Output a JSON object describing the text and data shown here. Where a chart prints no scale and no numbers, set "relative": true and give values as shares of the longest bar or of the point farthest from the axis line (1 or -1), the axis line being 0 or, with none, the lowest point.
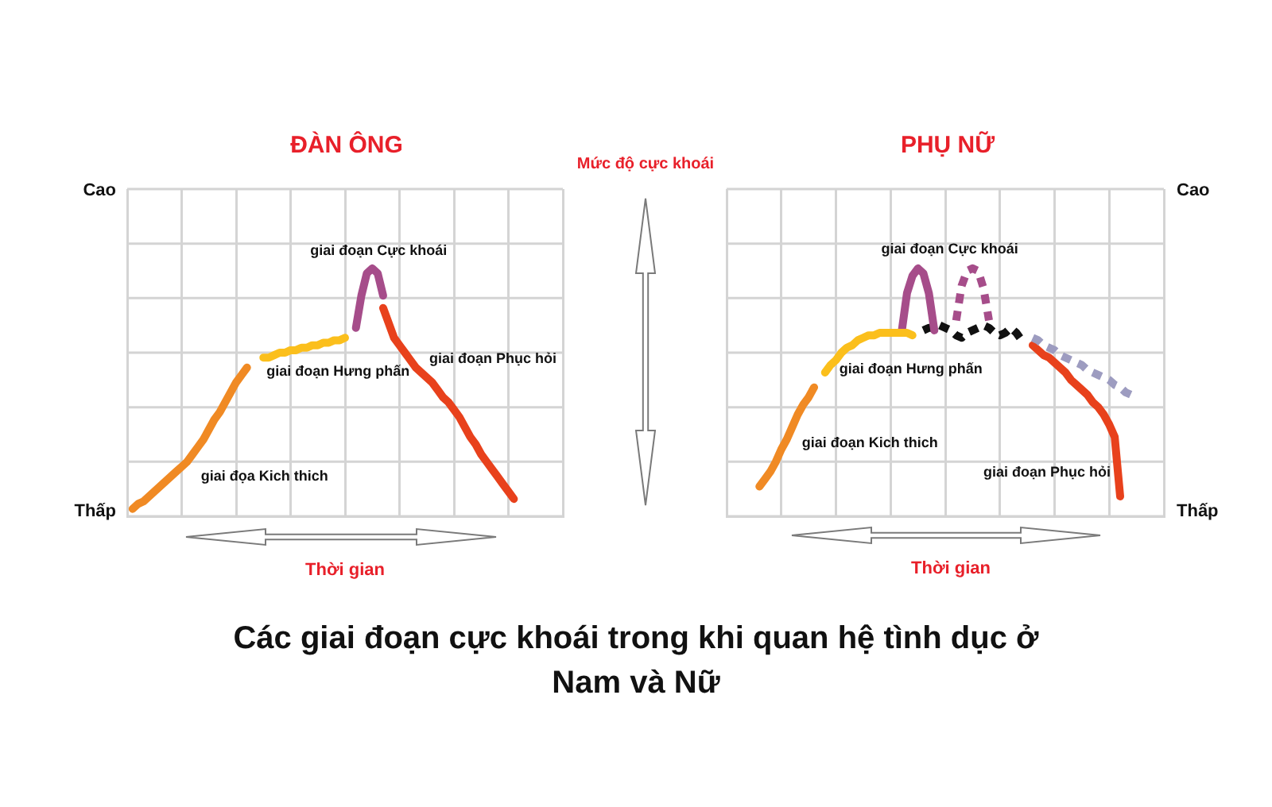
{
  "chart_data": [
    {
      "type": "line",
      "title": "ĐÀN ÔNG",
      "xlabel": "Thời gian",
      "ylabel": "Mức độ cực khoái",
      "relative": true,
      "categories": [
        null,
        null,
        null,
        null,
        null,
        null,
        null,
        null,
        null,
        null,
        null,
        null,
        null,
        null,
        null,
        null,
        null,
        null,
        null,
        null,
        null,
        null,
        null,
        null,
        null,
        null,
        null,
        null,
        null,
        null,
        null,
        null,
        null,
        null,
        null,
        null,
        null,
        null,
        null,
        null,
        null,
        null,
        null,
        null,
        null,
        null,
        null,
        null,
        null,
        null,
        null,
        null,
        null,
        null,
        null,
        null,
        null,
        null,
        null,
        null,
        null,
        null,
        null,
        null,
        null,
        null,
        null,
        null,
        null,
        null,
        null,
        null,
        null,
        null,
        null,
        null,
        null,
        null,
        null,
        null,
        null
      ],
      "grid": true,
      "legend": false,
      "marker": "none",
      "line_style": "solid",
      "annotations": [
        "Cao",
        "Thấp"
      ],
      "series": [
        {
          "name": "giai đọa Kich thich",
          "color": "#f08a24",
          "values": [
            null,
            0.03,
            0.05,
            0.06,
            0.08,
            0.1,
            0.12,
            0.14,
            0.16,
            0.18,
            0.2,
            0.22,
            0.25,
            0.28,
            0.31,
            0.35,
            0.39,
            0.42,
            0.46,
            0.5,
            0.54,
            0.57,
            0.6,
            null,
            null,
            null,
            null,
            null,
            null,
            null,
            null,
            null,
            null,
            null,
            null,
            null,
            null,
            null,
            null,
            null,
            null,
            null,
            null,
            null,
            null,
            null,
            null,
            null,
            null,
            null,
            null,
            null,
            null,
            null,
            null,
            null,
            null,
            null,
            null,
            null,
            null,
            null,
            null,
            null,
            null,
            null,
            null,
            null,
            null,
            null,
            null,
            null,
            null,
            null,
            null,
            null,
            null,
            null,
            null,
            null,
            null
          ]
        },
        {
          "name": "giai đoạn Hưng phấn",
          "color": "#fbbf1c",
          "values": [
            null,
            null,
            null,
            null,
            null,
            null,
            null,
            null,
            null,
            null,
            null,
            null,
            null,
            null,
            null,
            null,
            null,
            null,
            null,
            null,
            null,
            null,
            null,
            null,
            null,
            0.64,
            0.64,
            0.65,
            0.66,
            0.66,
            0.67,
            0.67,
            0.68,
            0.68,
            0.69,
            0.69,
            0.7,
            0.7,
            0.71,
            0.71,
            0.72,
            null,
            null,
            null,
            null,
            null,
            null,
            null,
            null,
            null,
            null,
            null,
            null,
            null,
            null,
            null,
            null,
            null,
            null,
            null,
            null,
            null,
            null,
            null,
            null,
            null,
            null,
            null,
            null,
            null,
            null,
            null,
            null,
            null,
            null,
            null,
            null,
            null,
            null,
            null,
            null
          ]
        },
        {
          "name": "giai đoạn Cực khoái",
          "color": "#a64d8a",
          "values": [
            null,
            null,
            null,
            null,
            null,
            null,
            null,
            null,
            null,
            null,
            null,
            null,
            null,
            null,
            null,
            null,
            null,
            null,
            null,
            null,
            null,
            null,
            null,
            null,
            null,
            null,
            null,
            null,
            null,
            null,
            null,
            null,
            null,
            null,
            null,
            null,
            null,
            null,
            null,
            null,
            null,
            null,
            0.76,
            0.89,
            0.98,
            1,
            0.98,
            0.89,
            null,
            null,
            null,
            null,
            null,
            null,
            null,
            null,
            null,
            null,
            null,
            null,
            null,
            null,
            null,
            null,
            null,
            null,
            null,
            null,
            null,
            null,
            null,
            null,
            null,
            null,
            null,
            null,
            null,
            null,
            null,
            null,
            null
          ]
        },
        {
          "name": "giai đoạn Phục hỏi",
          "color": "#e8411c",
          "values": [
            null,
            null,
            null,
            null,
            null,
            null,
            null,
            null,
            null,
            null,
            null,
            null,
            null,
            null,
            null,
            null,
            null,
            null,
            null,
            null,
            null,
            null,
            null,
            null,
            null,
            null,
            null,
            null,
            null,
            null,
            null,
            null,
            null,
            null,
            null,
            null,
            null,
            null,
            null,
            null,
            null,
            null,
            null,
            null,
            null,
            null,
            null,
            0.84,
            0.78,
            0.72,
            0.69,
            0.66,
            0.63,
            0.6,
            0.58,
            0.56,
            0.54,
            0.51,
            0.48,
            0.46,
            0.43,
            0.4,
            0.36,
            0.32,
            0.29,
            0.25,
            0.22,
            0.19,
            0.16,
            0.13,
            0.1,
            0.07,
            null,
            null,
            null,
            null,
            null,
            null,
            null,
            null,
            null
          ]
        }
      ]
    },
    {
      "type": "line",
      "title": "PHỤ NỮ",
      "xlabel": "Thời gian",
      "relative": true,
      "categories": [
        null,
        null,
        null,
        null,
        null,
        null,
        null,
        null,
        null,
        null,
        null,
        null,
        null,
        null,
        null,
        null,
        null,
        null,
        null,
        null,
        null,
        null,
        null,
        null,
        null,
        null,
        null,
        null,
        null,
        null,
        null,
        null,
        null,
        null,
        null,
        null,
        null,
        null,
        null,
        null,
        null,
        null,
        null,
        null,
        null,
        null,
        null,
        null,
        null,
        null,
        null,
        null,
        null,
        null,
        null,
        null,
        null,
        null,
        null,
        null,
        null,
        null,
        null,
        null,
        null,
        null,
        null,
        null,
        null,
        null,
        null,
        null,
        null,
        null,
        null,
        null,
        null,
        null,
        null,
        null,
        null
      ],
      "grid": true,
      "legend": false,
      "marker": "none",
      "line_style": "solid",
      "annotations": [
        "Cao",
        "Thấp",
        "Các giai đoạn cực khoái trong khi quan hệ tình dục ở Nam và Nữ"
      ],
      "series": [
        {
          "name": "giai đoạn Kich thich",
          "color": "#f08a24",
          "values": [
            null,
            null,
            null,
            null,
            null,
            null,
            0.12,
            0.15,
            0.18,
            0.22,
            0.27,
            0.31,
            0.36,
            0.41,
            0.45,
            0.48,
            0.52,
            null,
            null,
            null,
            null,
            null,
            null,
            null,
            null,
            null,
            null,
            null,
            null,
            null,
            null,
            null,
            null,
            null,
            null,
            null,
            null,
            null,
            null,
            null,
            null,
            null,
            null,
            null,
            null,
            null,
            null,
            null,
            null,
            null,
            null,
            null,
            null,
            null,
            null,
            null,
            null,
            null,
            null,
            null,
            null,
            null,
            null,
            null,
            null,
            null,
            null,
            null,
            null,
            null,
            null,
            null,
            null,
            null,
            null,
            null,
            null,
            null,
            null,
            null,
            null
          ]
        },
        {
          "name": "giai đoạn Hưng phấn",
          "color": "#fbbf1c",
          "values": [
            null,
            null,
            null,
            null,
            null,
            null,
            null,
            null,
            null,
            null,
            null,
            null,
            null,
            null,
            null,
            null,
            null,
            null,
            0.58,
            0.61,
            0.63,
            0.66,
            0.68,
            0.69,
            0.71,
            0.72,
            0.73,
            0.73,
            0.74,
            0.74,
            0.74,
            0.74,
            0.74,
            0.74,
            0.73,
            null,
            null,
            null,
            null,
            null,
            null,
            null,
            null,
            null,
            null,
            null,
            null,
            null,
            null,
            null,
            null,
            null,
            null,
            null,
            null,
            null,
            null,
            null,
            null,
            null,
            null,
            null,
            null,
            null,
            null,
            null,
            null,
            null,
            null,
            null,
            null,
            null,
            null,
            null,
            null,
            null,
            null,
            null,
            null,
            null,
            null
          ]
        },
        {
          "name": "giai đoạn Cực khoái",
          "color": "#a64d8a",
          "values": [
            null,
            null,
            null,
            null,
            null,
            null,
            null,
            null,
            null,
            null,
            null,
            null,
            null,
            null,
            null,
            null,
            null,
            null,
            null,
            null,
            null,
            null,
            null,
            null,
            null,
            null,
            null,
            null,
            null,
            null,
            null,
            null,
            0.74,
            0.9,
            0.97,
            1,
            0.98,
            0.9,
            0.75,
            null,
            null,
            null,
            null,
            null,
            null,
            null,
            null,
            null,
            null,
            null,
            null,
            null,
            null,
            null,
            null,
            null,
            null,
            null,
            null,
            null,
            null,
            null,
            null,
            null,
            null,
            null,
            null,
            null,
            null,
            null,
            null,
            null,
            null,
            null,
            null,
            null,
            null,
            null,
            null,
            null,
            null
          ]
        },
        {
          "color": "#a64d8a",
          "line_style": "dotted",
          "values": [
            null,
            null,
            null,
            null,
            null,
            null,
            null,
            null,
            null,
            null,
            null,
            null,
            null,
            null,
            null,
            null,
            null,
            null,
            null,
            null,
            null,
            null,
            null,
            null,
            null,
            null,
            null,
            null,
            null,
            null,
            null,
            null,
            null,
            null,
            null,
            null,
            null,
            null,
            null,
            null,
            null,
            null,
            0.79,
            0.93,
            0.99,
            1,
            0.99,
            0.92,
            0.79,
            null,
            null,
            null,
            null,
            null,
            null,
            null,
            null,
            null,
            null,
            null,
            null,
            null,
            null,
            null,
            null,
            null,
            null,
            null,
            null,
            null,
            null,
            null,
            null,
            null,
            null,
            null,
            null,
            null,
            null,
            null,
            null
          ]
        },
        {
          "color": "#111111",
          "line_style": "dotted",
          "values": [
            null,
            null,
            null,
            null,
            null,
            null,
            null,
            null,
            null,
            null,
            null,
            null,
            null,
            null,
            null,
            null,
            null,
            null,
            null,
            null,
            null,
            null,
            null,
            null,
            null,
            null,
            null,
            null,
            null,
            null,
            null,
            null,
            null,
            null,
            null,
            null,
            0.75,
            0.76,
            0.76,
            0.77,
            0.76,
            0.75,
            0.73,
            0.72,
            0.74,
            0.75,
            0.76,
            0.77,
            0.76,
            0.74,
            0.73,
            0.74,
            0.76,
            0.74,
            0.71,
            null,
            null,
            null,
            null,
            null,
            null,
            null,
            null,
            null,
            null,
            null,
            null,
            null,
            null,
            null,
            null,
            null,
            null,
            null,
            null,
            null,
            null,
            null,
            null,
            null,
            null
          ]
        },
        {
          "color": "#9d9cc0",
          "line_style": "dotted",
          "values": [
            null,
            null,
            null,
            null,
            null,
            null,
            null,
            null,
            null,
            null,
            null,
            null,
            null,
            null,
            null,
            null,
            null,
            null,
            null,
            null,
            null,
            null,
            null,
            null,
            null,
            null,
            null,
            null,
            null,
            null,
            null,
            null,
            null,
            null,
            null,
            null,
            null,
            null,
            null,
            null,
            null,
            null,
            null,
            null,
            null,
            null,
            null,
            null,
            null,
            null,
            null,
            null,
            null,
            null,
            null,
            null,
            0.72,
            0.71,
            0.69,
            0.68,
            0.67,
            0.65,
            0.64,
            0.63,
            0.62,
            0.61,
            0.59,
            0.58,
            0.57,
            0.56,
            0.55,
            0.53,
            0.52,
            0.5,
            0.49,
            0.47,
            null,
            null,
            null,
            null,
            null
          ]
        },
        {
          "name": "giai đoạn Phục hỏi",
          "color": "#e8411c",
          "values": [
            null,
            null,
            null,
            null,
            null,
            null,
            null,
            null,
            null,
            null,
            null,
            null,
            null,
            null,
            null,
            null,
            null,
            null,
            null,
            null,
            null,
            null,
            null,
            null,
            null,
            null,
            null,
            null,
            null,
            null,
            null,
            null,
            null,
            null,
            null,
            null,
            null,
            null,
            null,
            null,
            null,
            null,
            null,
            null,
            null,
            null,
            null,
            null,
            null,
            null,
            null,
            null,
            null,
            null,
            null,
            null,
            0.69,
            0.67,
            0.65,
            0.64,
            0.62,
            0.6,
            0.58,
            0.55,
            0.53,
            0.51,
            0.49,
            0.46,
            0.44,
            0.41,
            0.37,
            0.32,
            0.08,
            null,
            null,
            null,
            null,
            null,
            null,
            null,
            null
          ]
        }
      ]
    }
  ]
}
